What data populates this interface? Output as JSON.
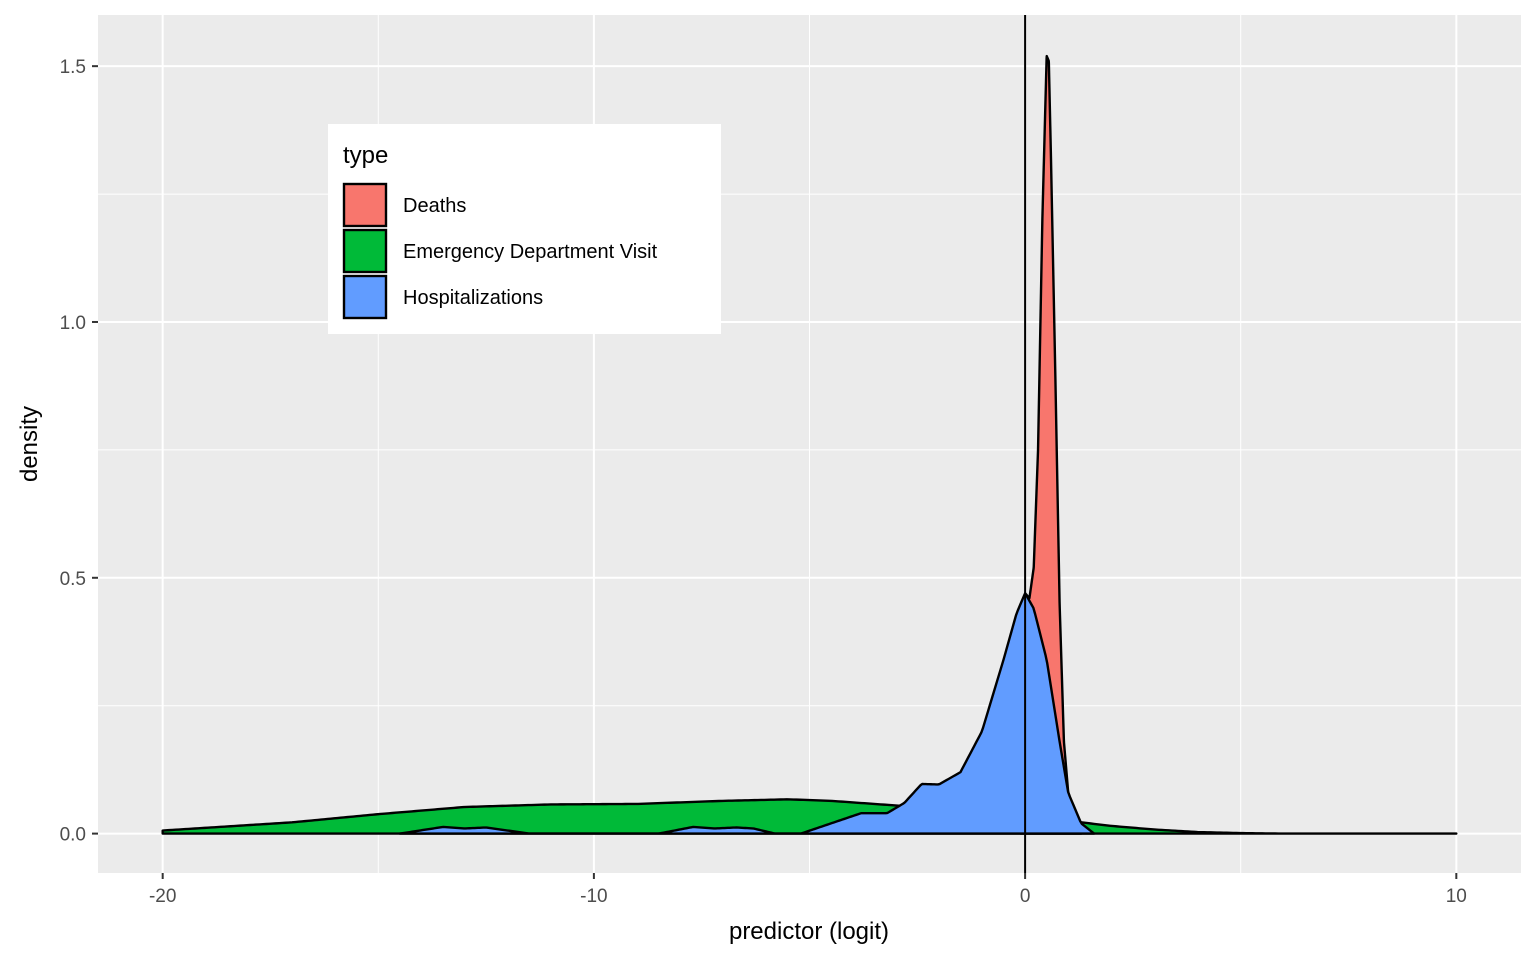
{
  "chart_data": {
    "type": "area",
    "subtype": "stacked density",
    "xlabel": "predictor (logit)",
    "ylabel": "density",
    "xlim": [
      -21.5,
      11.5
    ],
    "ylim": [
      -0.077,
      1.6
    ],
    "x_ticks": [
      -20,
      -10,
      0,
      10
    ],
    "y_ticks": [
      0.0,
      0.5,
      1.0,
      1.5
    ],
    "x_tick_labels": [
      "-20",
      "-10",
      "0",
      "10"
    ],
    "y_tick_labels": [
      "0.0",
      "0.5",
      "1.0",
      "1.5"
    ],
    "reference_line": {
      "orientation": "vertical",
      "x": 0
    },
    "legend": {
      "title": "type",
      "position": "inside-top-left"
    },
    "grid": true,
    "background_color": "#ebebeb",
    "series": [
      {
        "name": "Deaths",
        "color": "#F8766D",
        "points": [
          [
            -0.1,
            0.0
          ],
          [
            0.0,
            0.47
          ],
          [
            0.1,
            0.46
          ],
          [
            0.2,
            0.52
          ],
          [
            0.3,
            0.75
          ],
          [
            0.4,
            1.2
          ],
          [
            0.5,
            1.52
          ],
          [
            0.55,
            1.51
          ],
          [
            0.6,
            1.32
          ],
          [
            0.7,
            0.9
          ],
          [
            0.8,
            0.45
          ],
          [
            0.9,
            0.18
          ],
          [
            1.0,
            0.08
          ],
          [
            1.3,
            0.0
          ]
        ]
      },
      {
        "name": "Emergency Department Visit",
        "color": "#00BA38",
        "points": [
          [
            -20,
            0.006
          ],
          [
            -17,
            0.022
          ],
          [
            -15,
            0.038
          ],
          [
            -13,
            0.052
          ],
          [
            -11,
            0.057
          ],
          [
            -9,
            0.058
          ],
          [
            -7,
            0.064
          ],
          [
            -5.5,
            0.067
          ],
          [
            -4.5,
            0.064
          ],
          [
            -3,
            0.055
          ],
          [
            -2,
            0.049
          ],
          [
            -1,
            0.04
          ],
          [
            0,
            0.032
          ],
          [
            1,
            0.025
          ],
          [
            2,
            0.015
          ],
          [
            3,
            0.008
          ],
          [
            4,
            0.003
          ],
          [
            5,
            0.001
          ],
          [
            6,
            0.0
          ],
          [
            10,
            0.0
          ]
        ]
      },
      {
        "name": "Hospitalizations",
        "color": "#619CFF",
        "points": [
          [
            -14.5,
            0.0
          ],
          [
            -13.5,
            0.013
          ],
          [
            -13,
            0.01
          ],
          [
            -12.5,
            0.012
          ],
          [
            -12,
            0.006
          ],
          [
            -11.5,
            0.0
          ],
          [
            -8.5,
            0.0
          ],
          [
            -7.7,
            0.013
          ],
          [
            -7.2,
            0.01
          ],
          [
            -6.7,
            0.012
          ],
          [
            -6.3,
            0.01
          ],
          [
            -5.8,
            0.0
          ],
          [
            -5.2,
            0.0
          ],
          [
            -4.5,
            0.02
          ],
          [
            -3.8,
            0.04
          ],
          [
            -3.2,
            0.04
          ],
          [
            -2.8,
            0.06
          ],
          [
            -2.4,
            0.097
          ],
          [
            -2.0,
            0.096
          ],
          [
            -1.5,
            0.12
          ],
          [
            -1.0,
            0.2
          ],
          [
            -0.5,
            0.34
          ],
          [
            -0.2,
            0.43
          ],
          [
            0.0,
            0.47
          ],
          [
            0.2,
            0.44
          ],
          [
            0.5,
            0.34
          ],
          [
            0.8,
            0.18
          ],
          [
            1.0,
            0.08
          ],
          [
            1.3,
            0.02
          ],
          [
            1.6,
            0.0
          ]
        ]
      }
    ]
  }
}
